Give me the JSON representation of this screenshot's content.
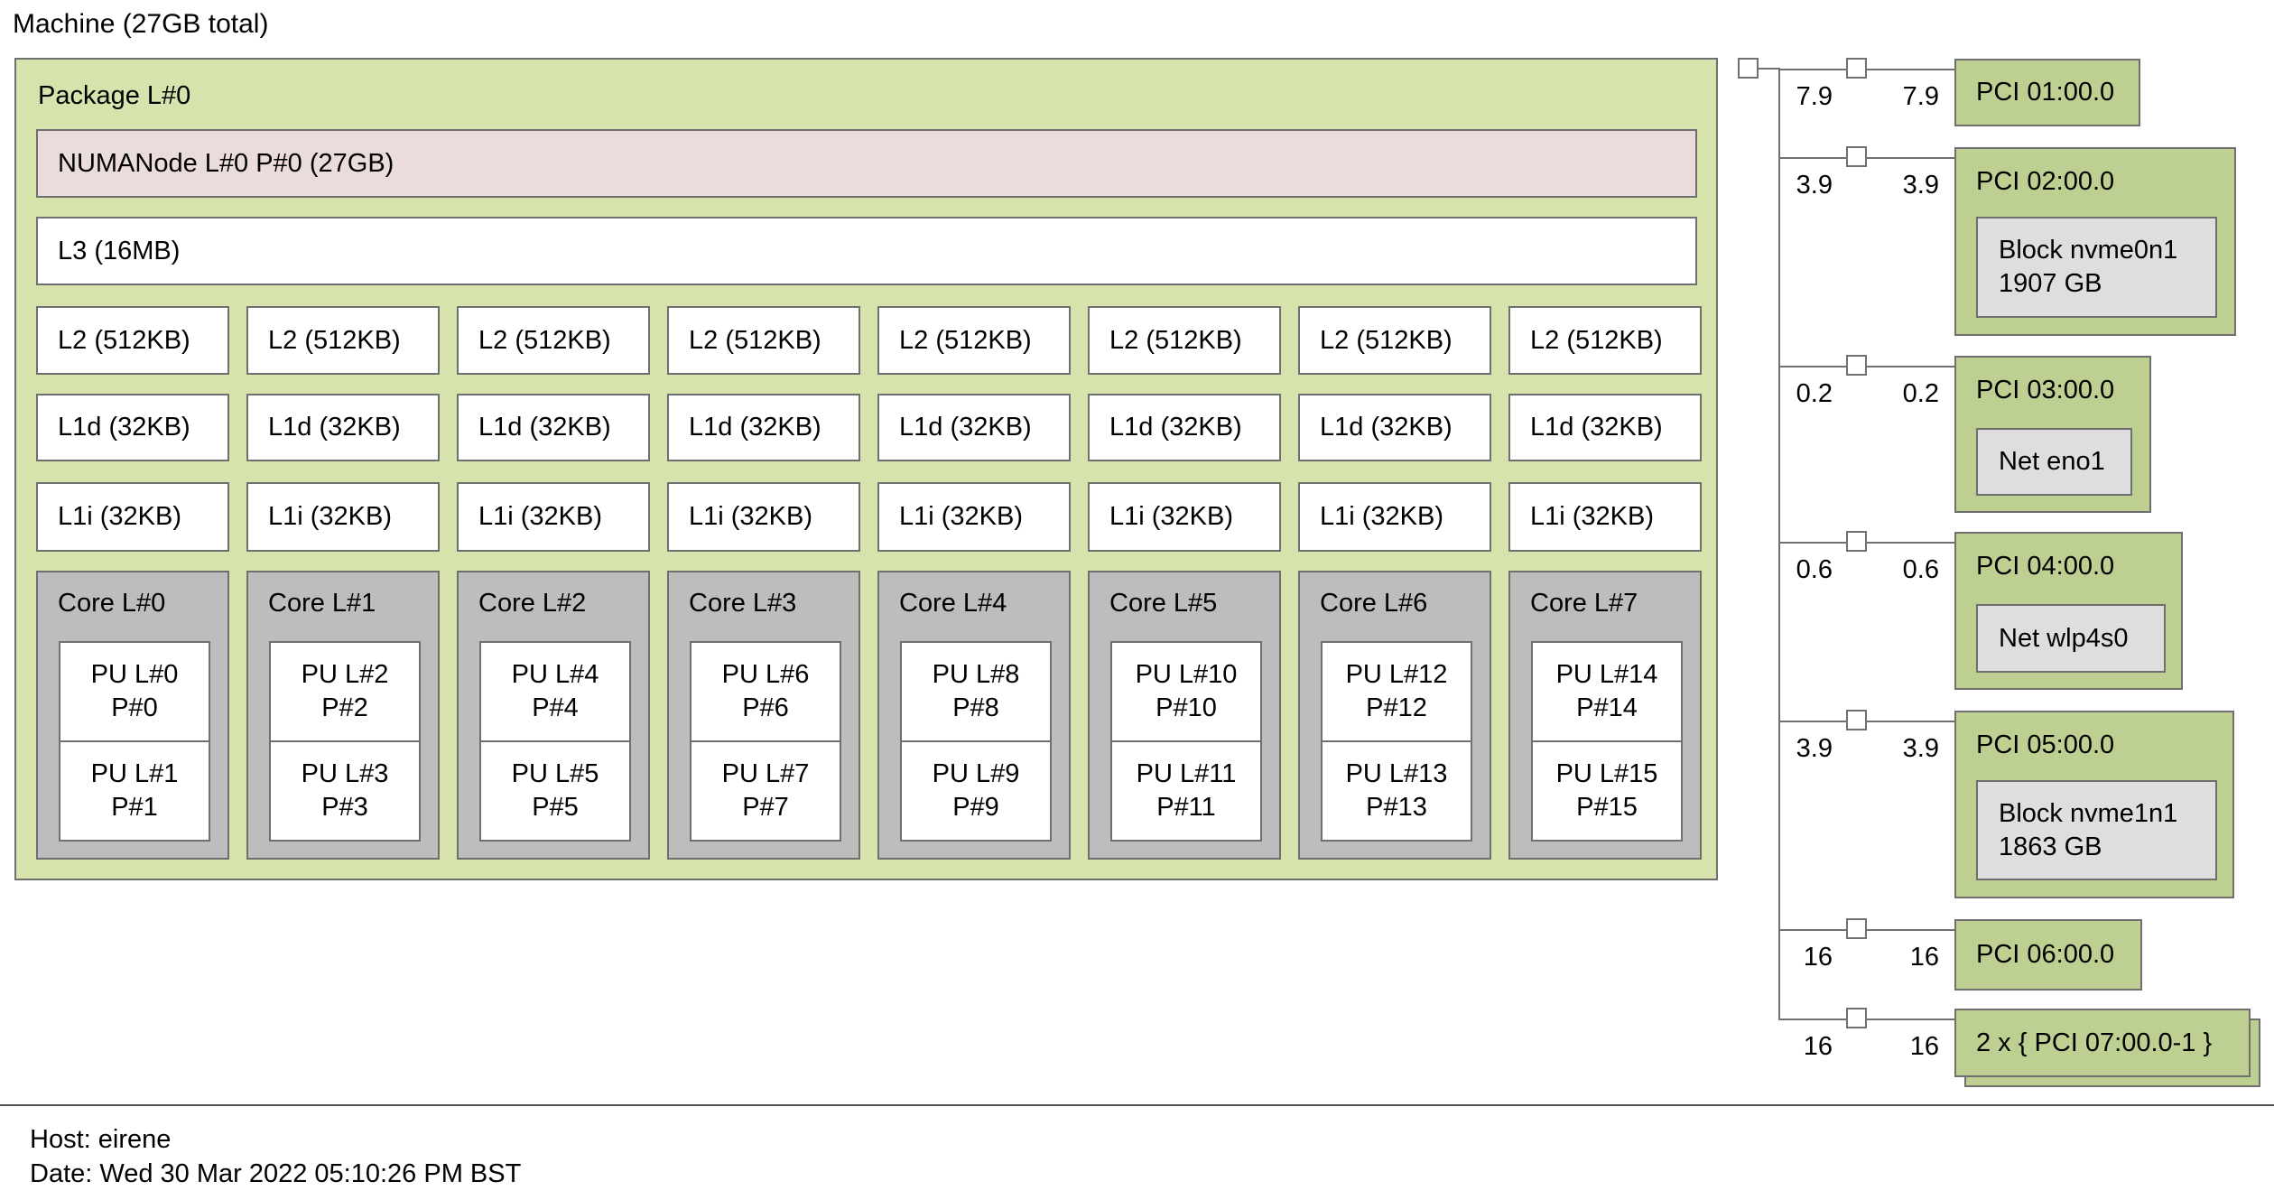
{
  "title": "Machine (27GB total)",
  "package": {
    "label": "Package L#0",
    "numa": {
      "label": "NUMANode L#0 P#0 (27GB)"
    },
    "l3": {
      "label": "L3 (16MB)"
    },
    "cache_rows": [
      {
        "name": "l2",
        "labels": [
          "L2 (512KB)",
          "L2 (512KB)",
          "L2 (512KB)",
          "L2 (512KB)",
          "L2 (512KB)",
          "L2 (512KB)",
          "L2 (512KB)",
          "L2 (512KB)"
        ]
      },
      {
        "name": "l1d",
        "labels": [
          "L1d (32KB)",
          "L1d (32KB)",
          "L1d (32KB)",
          "L1d (32KB)",
          "L1d (32KB)",
          "L1d (32KB)",
          "L1d (32KB)",
          "L1d (32KB)"
        ]
      },
      {
        "name": "l1i",
        "labels": [
          "L1i (32KB)",
          "L1i (32KB)",
          "L1i (32KB)",
          "L1i (32KB)",
          "L1i (32KB)",
          "L1i (32KB)",
          "L1i (32KB)",
          "L1i (32KB)"
        ]
      }
    ],
    "cores": [
      {
        "label": "Core L#0",
        "pus": [
          {
            "l": "PU L#0",
            "p": "P#0"
          },
          {
            "l": "PU L#1",
            "p": "P#1"
          }
        ]
      },
      {
        "label": "Core L#1",
        "pus": [
          {
            "l": "PU L#2",
            "p": "P#2"
          },
          {
            "l": "PU L#3",
            "p": "P#3"
          }
        ]
      },
      {
        "label": "Core L#2",
        "pus": [
          {
            "l": "PU L#4",
            "p": "P#4"
          },
          {
            "l": "PU L#5",
            "p": "P#5"
          }
        ]
      },
      {
        "label": "Core L#3",
        "pus": [
          {
            "l": "PU L#6",
            "p": "P#6"
          },
          {
            "l": "PU L#7",
            "p": "P#7"
          }
        ]
      },
      {
        "label": "Core L#4",
        "pus": [
          {
            "l": "PU L#8",
            "p": "P#8"
          },
          {
            "l": "PU L#9",
            "p": "P#9"
          }
        ]
      },
      {
        "label": "Core L#5",
        "pus": [
          {
            "l": "PU L#10",
            "p": "P#10"
          },
          {
            "l": "PU L#11",
            "p": "P#11"
          }
        ]
      },
      {
        "label": "Core L#6",
        "pus": [
          {
            "l": "PU L#12",
            "p": "P#12"
          },
          {
            "l": "PU L#13",
            "p": "P#13"
          }
        ]
      },
      {
        "label": "Core L#7",
        "pus": [
          {
            "l": "PU L#14",
            "p": "P#14"
          },
          {
            "l": "PU L#15",
            "p": "P#15"
          }
        ]
      }
    ]
  },
  "pci": {
    "branches": [
      {
        "up": "7.9",
        "down": "7.9",
        "label": "PCI 01:00.0",
        "devices": []
      },
      {
        "up": "3.9",
        "down": "3.9",
        "label": "PCI 02:00.0",
        "devices": [
          {
            "lines": [
              "Block nvme0n1",
              "1907 GB"
            ]
          }
        ]
      },
      {
        "up": "0.2",
        "down": "0.2",
        "label": "PCI 03:00.0",
        "devices": [
          {
            "lines": [
              "Net eno1"
            ]
          }
        ]
      },
      {
        "up": "0.6",
        "down": "0.6",
        "label": "PCI 04:00.0",
        "devices": [
          {
            "lines": [
              "Net wlp4s0"
            ]
          }
        ]
      },
      {
        "up": "3.9",
        "down": "3.9",
        "label": "PCI 05:00.0",
        "devices": [
          {
            "lines": [
              "Block nvme1n1",
              "1863 GB"
            ]
          }
        ]
      },
      {
        "up": "16",
        "down": "16",
        "label": "PCI 06:00.0",
        "devices": []
      },
      {
        "up": "16",
        "down": "16",
        "label": "2 x { PCI 07:00.0-1 }",
        "devices": []
      }
    ]
  },
  "footer": {
    "host": "Host: eirene",
    "date": "Date: Wed 30 Mar 2022 05:10:26 PM BST"
  },
  "colors": {
    "package_green": "#d6e3ac",
    "pci_green": "#bdd091",
    "numa_pink": "#ebdcdc",
    "core_gray": "#bdbdbd",
    "device_gray": "#dedede",
    "border_gray": "#6f6f6f",
    "background": "#ffffff",
    "text": "#000000"
  }
}
